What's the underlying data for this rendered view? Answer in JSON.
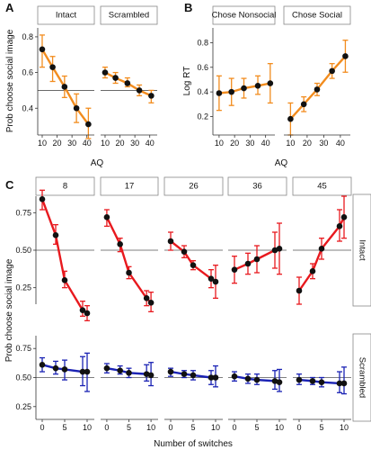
{
  "colors": {
    "orange": "#f28c1e",
    "red": "#e8191e",
    "blue": "#1a22b4",
    "point": "#111111",
    "reference_line": "#555555",
    "strip_fill": "#ffffff",
    "strip_border": "#888888"
  },
  "panel_labels": [
    "A",
    "B",
    "C"
  ],
  "chart_data": [
    {
      "id": "A",
      "type": "line",
      "ylabel": "Prob choose social image",
      "xlabel": "AQ",
      "ylim": [
        0.25,
        0.85
      ],
      "yticks": [
        "0.4",
        "0.6",
        "0.8"
      ],
      "xticks": [
        "10",
        "20",
        "30",
        "40"
      ],
      "reference_line": 0.5,
      "facets": [
        {
          "label": "Intact",
          "x": [
            10,
            17,
            25,
            33,
            41
          ],
          "y": [
            0.73,
            0.63,
            0.52,
            0.4,
            0.31
          ],
          "err_low": [
            0.63,
            0.55,
            0.46,
            0.32,
            0.23
          ],
          "err_high": [
            0.81,
            0.69,
            0.58,
            0.48,
            0.4
          ]
        },
        {
          "label": "Scrambled",
          "x": [
            10,
            17,
            25,
            33,
            41
          ],
          "y": [
            0.6,
            0.57,
            0.54,
            0.5,
            0.47
          ],
          "err_low": [
            0.57,
            0.54,
            0.52,
            0.47,
            0.43
          ],
          "err_high": [
            0.63,
            0.6,
            0.57,
            0.53,
            0.5
          ]
        }
      ]
    },
    {
      "id": "B",
      "type": "line",
      "ylabel": "Log RT",
      "xlabel": "AQ",
      "ylim": [
        0.05,
        0.92
      ],
      "yticks": [
        "0.2",
        "0.4",
        "0.6",
        "0.8"
      ],
      "xticks": [
        "10",
        "20",
        "30",
        "40"
      ],
      "facets": [
        {
          "label": "Chose Nonsocial",
          "x": [
            10,
            18,
            26,
            35,
            43
          ],
          "y": [
            0.39,
            0.4,
            0.43,
            0.45,
            0.47
          ],
          "err_low": [
            0.25,
            0.29,
            0.35,
            0.38,
            0.31
          ],
          "err_high": [
            0.53,
            0.51,
            0.51,
            0.53,
            0.63
          ]
        },
        {
          "label": "Chose Social",
          "x": [
            10,
            18,
            26,
            35,
            43
          ],
          "y": [
            0.18,
            0.3,
            0.42,
            0.57,
            0.69
          ],
          "err_low": [
            0.05,
            0.24,
            0.37,
            0.51,
            0.56
          ],
          "err_high": [
            0.31,
            0.36,
            0.47,
            0.63,
            0.82
          ]
        }
      ]
    },
    {
      "id": "C",
      "type": "line",
      "ylabel": "Prob choose social image",
      "xlabel": "Number of switches",
      "ylim": [
        0.14,
        0.86
      ],
      "yticks": [
        "0.25",
        "0.50",
        "0.75"
      ],
      "xticks": [
        "0",
        "5",
        "10"
      ],
      "reference_line": 0.5,
      "columns": [
        "8",
        "17",
        "26",
        "36",
        "45"
      ],
      "rows": [
        {
          "label": "Intact",
          "color_key": "red",
          "x": [
            0,
            3,
            5,
            9,
            10
          ],
          "y": [
            [
              0.84,
              0.6,
              0.3,
              0.1,
              0.08
            ],
            [
              0.72,
              0.54,
              0.35,
              0.18,
              0.15
            ],
            [
              0.56,
              0.49,
              0.4,
              0.31,
              0.29
            ],
            [
              0.37,
              0.41,
              0.44,
              0.5,
              0.51
            ],
            [
              0.23,
              0.36,
              0.51,
              0.66,
              0.72
            ]
          ],
          "err_low": [
            [
              0.77,
              0.54,
              0.25,
              0.06,
              0.03
            ],
            [
              0.66,
              0.49,
              0.31,
              0.13,
              0.09
            ],
            [
              0.5,
              0.45,
              0.37,
              0.25,
              0.18
            ],
            [
              0.28,
              0.34,
              0.35,
              0.38,
              0.34
            ],
            [
              0.14,
              0.31,
              0.44,
              0.56,
              0.58
            ]
          ],
          "err_high": [
            [
              0.9,
              0.67,
              0.36,
              0.16,
              0.13
            ],
            [
              0.77,
              0.58,
              0.39,
              0.23,
              0.22
            ],
            [
              0.62,
              0.53,
              0.43,
              0.37,
              0.4
            ],
            [
              0.46,
              0.48,
              0.53,
              0.62,
              0.68
            ],
            [
              0.32,
              0.41,
              0.58,
              0.77,
              0.86
            ]
          ]
        },
        {
          "label": "Scrambled",
          "color_key": "blue",
          "x": [
            0,
            3,
            5,
            9,
            10
          ],
          "y": [
            [
              0.61,
              0.58,
              0.57,
              0.55,
              0.55
            ],
            [
              0.58,
              0.56,
              0.54,
              0.53,
              0.52
            ],
            [
              0.55,
              0.53,
              0.52,
              0.5,
              0.5
            ],
            [
              0.51,
              0.49,
              0.48,
              0.47,
              0.46
            ],
            [
              0.48,
              0.47,
              0.46,
              0.45,
              0.45
            ]
          ],
          "err_low": [
            [
              0.55,
              0.53,
              0.48,
              0.43,
              0.38
            ],
            [
              0.54,
              0.53,
              0.5,
              0.47,
              0.43
            ],
            [
              0.51,
              0.5,
              0.48,
              0.44,
              0.42
            ],
            [
              0.47,
              0.45,
              0.44,
              0.4,
              0.38
            ],
            [
              0.44,
              0.44,
              0.42,
              0.37,
              0.36
            ]
          ],
          "err_high": [
            [
              0.67,
              0.64,
              0.65,
              0.68,
              0.71
            ],
            [
              0.62,
              0.6,
              0.58,
              0.61,
              0.63
            ],
            [
              0.58,
              0.56,
              0.56,
              0.56,
              0.6
            ],
            [
              0.55,
              0.53,
              0.53,
              0.56,
              0.57
            ],
            [
              0.53,
              0.5,
              0.5,
              0.55,
              0.59
            ]
          ]
        }
      ]
    }
  ]
}
